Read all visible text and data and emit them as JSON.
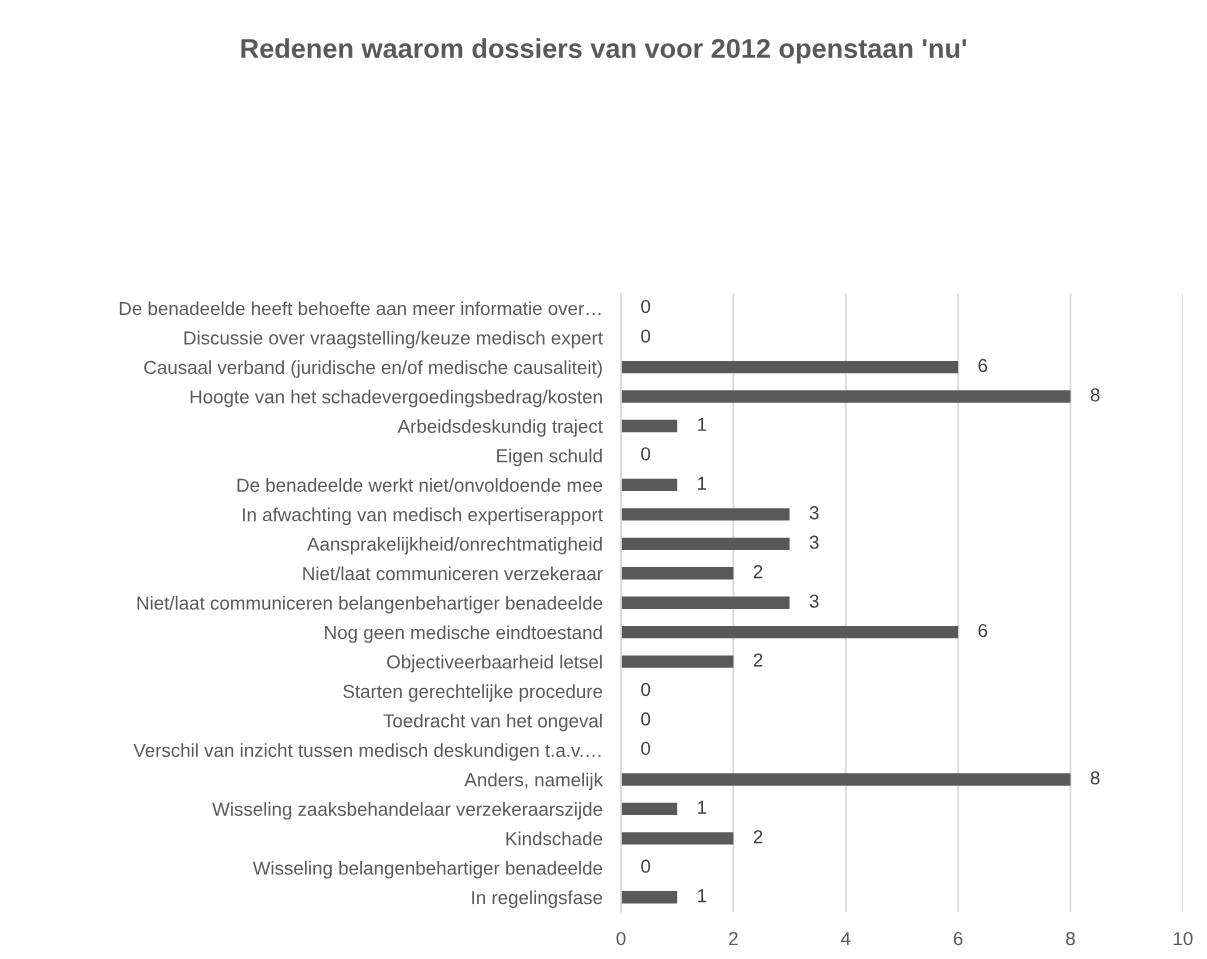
{
  "chart_data": {
    "type": "bar",
    "orientation": "horizontal",
    "title": "Redenen waarom dossiers van voor 2012 openstaan 'nu'",
    "categories": [
      "De benadeelde heeft behoefte aan meer informatie over…",
      "Discussie over vraagstelling/keuze medisch expert",
      "Causaal verband (juridische en/of medische causaliteit)",
      "Hoogte van het schadevergoedingsbedrag/kosten",
      "Arbeidsdeskundig traject",
      "Eigen schuld",
      "De benadeelde werkt niet/onvoldoende mee",
      "In afwachting van medisch expertiserapport",
      "Aansprakelijkheid/onrechtmatigheid",
      "Niet/laat communiceren verzekeraar",
      "Niet/laat communiceren belangenbehartiger benadeelde",
      "Nog geen medische eindtoestand",
      "Objectiveerbaarheid letsel",
      "Starten gerechtelijke procedure",
      "Toedracht van het ongeval",
      "Verschil van inzicht tussen medisch deskundigen t.a.v.…",
      "Anders, namelijk",
      "Wisseling zaaksbehandelaar verzekeraarszijde",
      "Kindschade",
      "Wisseling belangenbehartiger benadeelde",
      "In regelingsfase"
    ],
    "values": [
      0,
      0,
      6,
      8,
      1,
      0,
      1,
      3,
      3,
      2,
      3,
      6,
      2,
      0,
      0,
      0,
      8,
      1,
      2,
      0,
      1
    ],
    "color": "#595959",
    "xlim": [
      0,
      10
    ],
    "xticks": [
      0,
      2,
      4,
      6,
      8,
      10
    ],
    "grid": "x",
    "data_labels": true
  }
}
